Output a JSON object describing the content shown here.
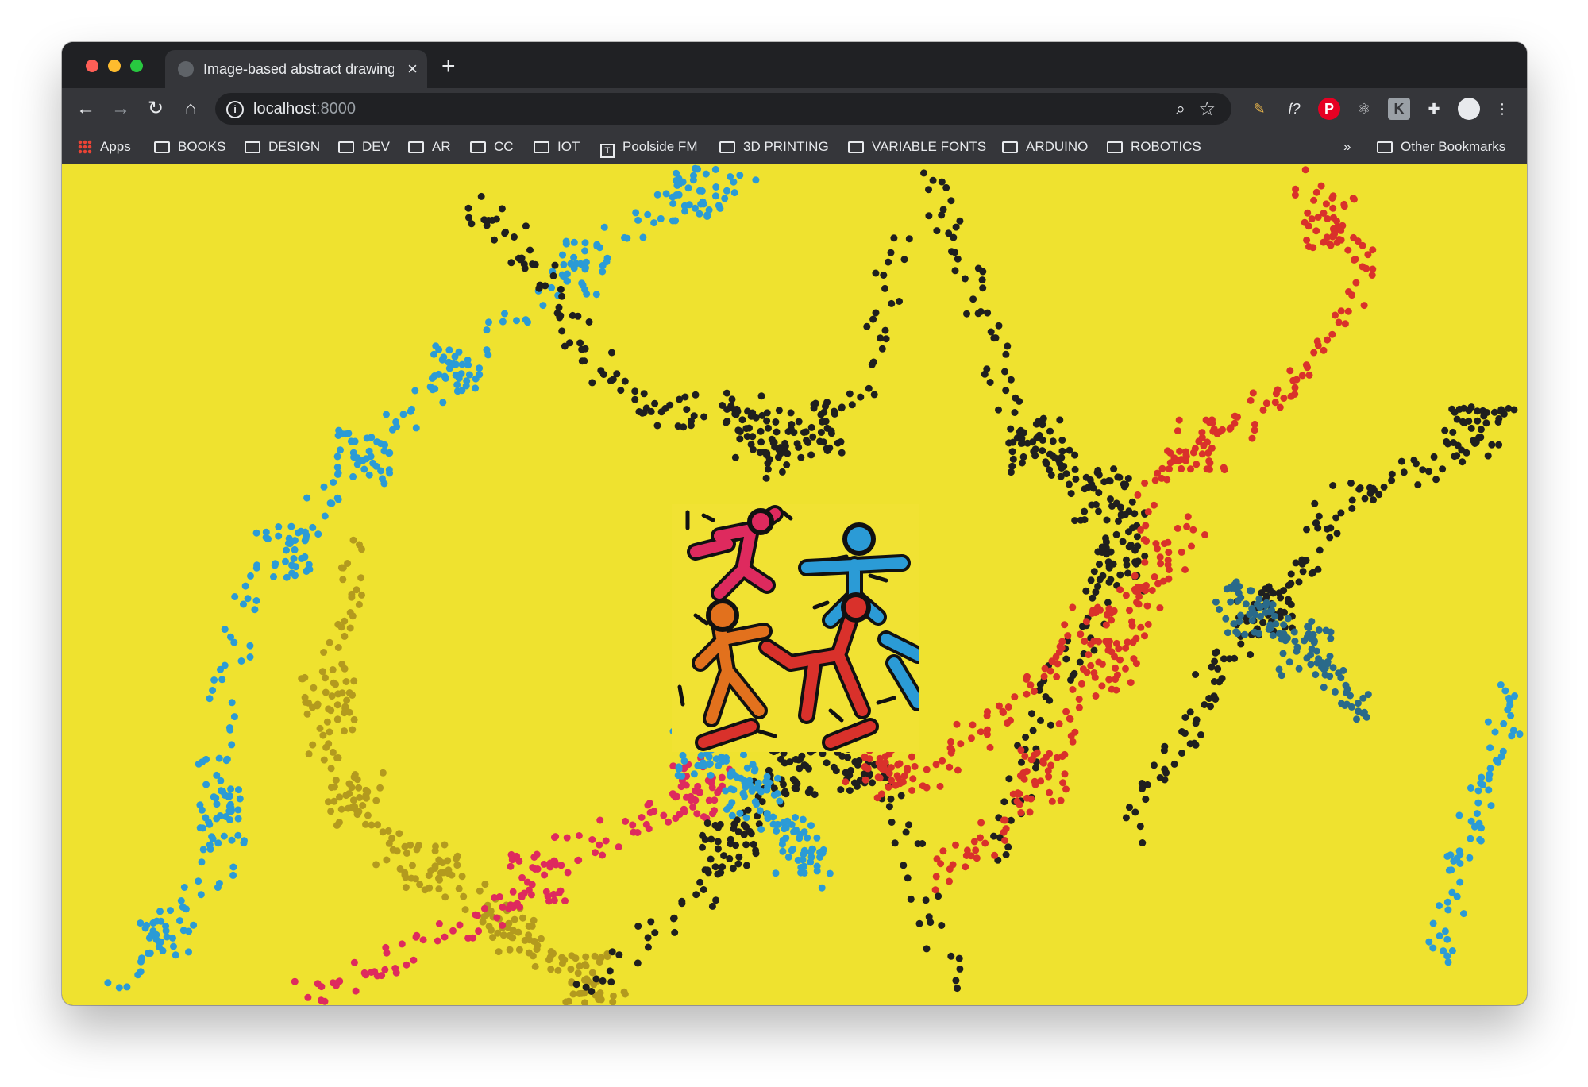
{
  "browser": {
    "tab_title": "Image-based abstract drawing",
    "tab_close": "×",
    "new_tab": "+",
    "url_host": "localhost",
    "url_port": ":8000",
    "bookmarks": [
      {
        "label": "Apps",
        "icon": "apps-grid-icon"
      },
      {
        "label": "BOOKS",
        "icon": "folder-icon"
      },
      {
        "label": "DESIGN",
        "icon": "folder-icon"
      },
      {
        "label": "DEV",
        "icon": "folder-icon"
      },
      {
        "label": "AR",
        "icon": "folder-icon"
      },
      {
        "label": "CC",
        "icon": "folder-icon"
      },
      {
        "label": "IOT",
        "icon": "folder-icon"
      },
      {
        "label": "Poolside FM",
        "icon": "page-icon"
      },
      {
        "label": "3D PRINTING",
        "icon": "folder-icon"
      },
      {
        "label": "VARIABLE FONTS",
        "icon": "folder-icon"
      },
      {
        "label": "ARDUINO",
        "icon": "folder-icon"
      },
      {
        "label": "ROBOTICS",
        "icon": "folder-icon"
      }
    ],
    "overflow": "»",
    "other_bookmarks": "Other Bookmarks"
  },
  "canvas": {
    "background": "#efe22f",
    "dot_colors": [
      "#2b9bd6",
      "#1f1f1f",
      "#d9312b",
      "#b39a1e",
      "#de2a5e",
      "#2a6a8a"
    ]
  }
}
